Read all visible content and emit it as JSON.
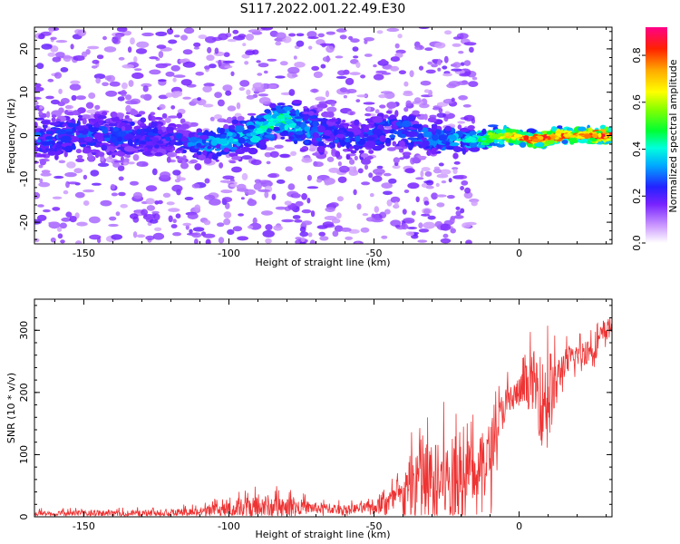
{
  "figure": {
    "title": "S117.2022.001.22.49.E30"
  },
  "chart_data": [
    {
      "type": "heatmap",
      "title": "S117.2022.001.22.49.E30",
      "xlabel": "Height of straight line (km)",
      "ylabel": "Frequency (Hz)",
      "xlim": [
        -167,
        32
      ],
      "ylim": [
        -25,
        25
      ],
      "xticks": [
        -150,
        -100,
        -50,
        0
      ],
      "yticks": [
        -20,
        -10,
        0,
        10,
        20
      ],
      "colorbar": {
        "label": "Normalized spectral amplitude",
        "range": [
          0.0,
          0.92
        ],
        "ticks": [
          "0.0",
          "0.2",
          "0.4",
          "0.6",
          "0.8"
        ],
        "tick_values": [
          0.0,
          0.2,
          0.4,
          0.6,
          0.8
        ]
      },
      "ridge": {
        "x": [
          -167,
          -150,
          -130,
          -120,
          -110,
          -100,
          -90,
          -82,
          -75,
          -65,
          -55,
          -45,
          -35,
          -25,
          -15,
          -5,
          5,
          15,
          25,
          32
        ],
        "freq": [
          -1,
          0,
          0,
          -1,
          -2,
          -1,
          1,
          4,
          2,
          0,
          -1,
          2,
          0,
          -1,
          -1,
          0,
          -1,
          0,
          0,
          0
        ],
        "amplitude": [
          0.28,
          0.27,
          0.26,
          0.24,
          0.32,
          0.36,
          0.42,
          0.48,
          0.36,
          0.28,
          0.26,
          0.3,
          0.3,
          0.34,
          0.44,
          0.7,
          0.84,
          0.8,
          0.86,
          0.85
        ],
        "width": [
          3.5,
          3.5,
          3.5,
          3,
          2.6,
          2.4,
          2.3,
          2.3,
          3,
          3.2,
          3.2,
          3,
          2.8,
          2.2,
          1.6,
          1.1,
          1.0,
          1.0,
          1.0,
          1.0
        ]
      },
      "background_noise": {
        "x_extent": [
          -167,
          -15
        ],
        "freq_extent": [
          -25,
          25
        ],
        "amplitude": 0.12
      }
    },
    {
      "type": "line",
      "xlabel": "Height of straight line (km)",
      "ylabel": "SNR (10 * v/v)",
      "xlim": [
        -167,
        32
      ],
      "ylim": [
        0,
        350
      ],
      "xticks": [
        -150,
        -100,
        -50,
        0
      ],
      "yticks": [
        0,
        100,
        200,
        300
      ],
      "color": "#ee3333",
      "envelope": {
        "x": [
          -167,
          -140,
          -120,
          -110,
          -100,
          -95,
          -90,
          -80,
          -70,
          -60,
          -50,
          -45,
          -40,
          -37,
          -35,
          -33,
          -30,
          -25,
          -20,
          -15,
          -10,
          -8,
          -5,
          0,
          5,
          8,
          10,
          12,
          15,
          20,
          25,
          30,
          32
        ],
        "base": [
          5,
          5,
          6,
          8,
          12,
          14,
          16,
          18,
          14,
          12,
          15,
          25,
          35,
          50,
          60,
          65,
          55,
          60,
          55,
          70,
          100,
          140,
          180,
          200,
          220,
          180,
          210,
          200,
          245,
          260,
          270,
          300,
          310
        ],
        "amp": [
          8,
          8,
          10,
          12,
          20,
          25,
          35,
          25,
          15,
          12,
          15,
          30,
          40,
          100,
          150,
          130,
          100,
          110,
          120,
          80,
          90,
          60,
          50,
          40,
          80,
          120,
          130,
          80,
          40,
          30,
          40,
          30,
          20
        ]
      }
    }
  ]
}
